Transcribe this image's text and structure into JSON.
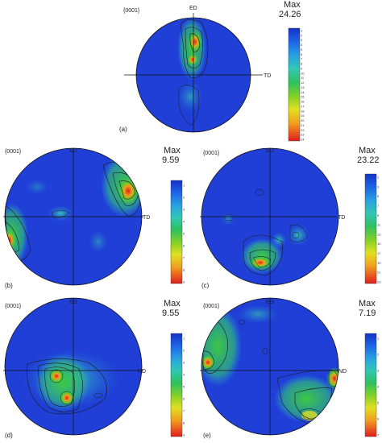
{
  "colors": {
    "background_low": "#1f3fd6",
    "high": "#e02020",
    "colorbar": [
      "#1432c8",
      "#1e64e6",
      "#2aa0e0",
      "#30c8b4",
      "#30c060",
      "#60c830",
      "#a0d820",
      "#e0e020",
      "#f0a020",
      "#f05a20",
      "#e01e1e"
    ]
  },
  "panels": [
    {
      "id": "a",
      "pf_label": "{0001}",
      "top_axis": "ED",
      "right_axis": "TD",
      "panel_label": "(a)",
      "max_title": "Max",
      "max_value": "24.26",
      "ticks": [
        "1",
        "2",
        "3",
        "4",
        "5",
        "6",
        "7",
        "8",
        "9",
        "10",
        "11",
        "12",
        "13",
        "14",
        "15",
        "16",
        "17",
        "18",
        "19",
        "20",
        "21",
        "22",
        "23",
        "24"
      ]
    },
    {
      "id": "b",
      "pf_label": "{0001}",
      "top_axis": "ED",
      "right_axis": "TD",
      "panel_label": "(b)",
      "max_title": "Max",
      "max_value": "9.59",
      "ticks": [
        "1",
        "2",
        "3",
        "4",
        "5",
        "6",
        "7",
        "8",
        "9"
      ]
    },
    {
      "id": "c",
      "pf_label": "{0001}",
      "top_axis": "ED",
      "right_axis": "TD",
      "panel_label": "(c)",
      "max_title": "Max",
      "max_value": "23.22",
      "ticks": [
        "1",
        "3",
        "5",
        "7",
        "9",
        "11",
        "13",
        "15",
        "17",
        "19",
        "21",
        "23"
      ]
    },
    {
      "id": "d",
      "pf_label": "{0001}",
      "top_axis": "ED",
      "right_axis": "ND",
      "panel_label": "(d)",
      "max_title": "Max",
      "max_value": "9.55",
      "ticks": [
        "1",
        "2",
        "3",
        "4",
        "5",
        "6",
        "7",
        "8",
        "9"
      ]
    },
    {
      "id": "e",
      "pf_label": "{0001}",
      "top_axis": "ED",
      "right_axis": "ND",
      "panel_label": "(e)",
      "max_title": "Max",
      "max_value": "7.19",
      "ticks": [
        "1",
        "2",
        "3",
        "4",
        "5",
        "6",
        "7"
      ]
    }
  ]
}
